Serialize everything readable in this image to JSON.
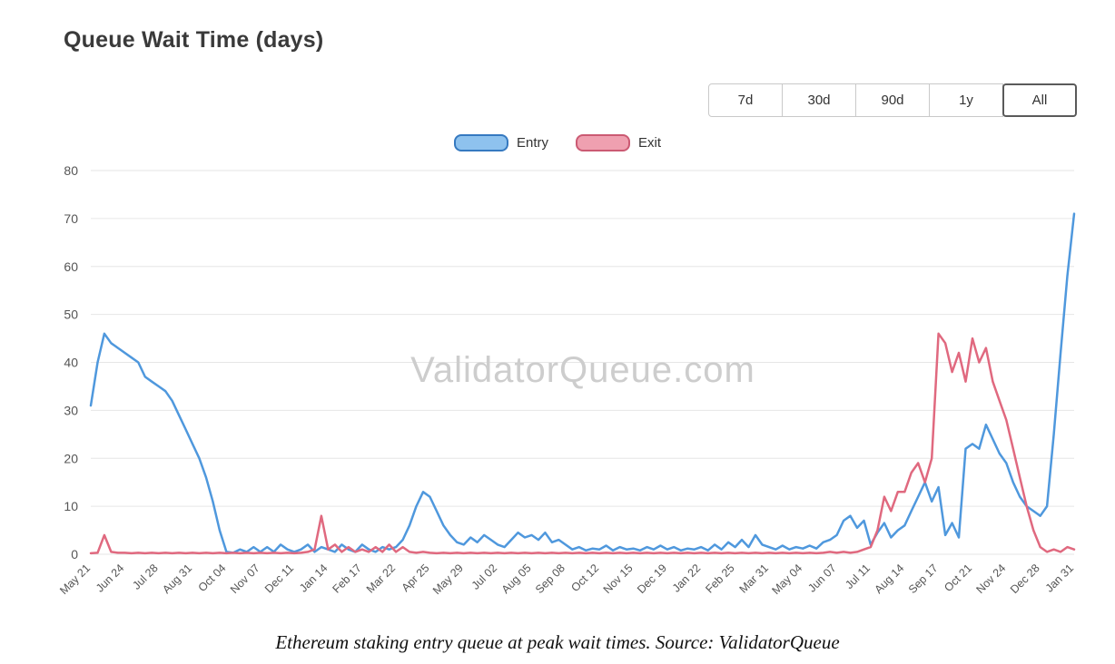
{
  "header": {
    "title": "Queue Wait Time (days)"
  },
  "range_selector": {
    "options": [
      "7d",
      "30d",
      "90d",
      "1y",
      "All"
    ],
    "selected": "All"
  },
  "legend": {
    "items": [
      {
        "label": "Entry",
        "fill": "#8ec2ee",
        "border": "#3579c0"
      },
      {
        "label": "Exit",
        "fill": "#efa0b0",
        "border": "#cb5a73"
      }
    ]
  },
  "watermark": "ValidatorQueue.com",
  "caption": "Ethereum staking entry queue at peak wait times. Source: ValidatorQueue",
  "chart_data": {
    "type": "line",
    "title": "Queue Wait Time (days)",
    "ylabel": "",
    "xlabel": "",
    "ylim": [
      0,
      80
    ],
    "y_ticks": [
      0,
      10,
      20,
      30,
      40,
      50,
      60,
      70,
      80
    ],
    "grid": "horizontal",
    "legend_position": "top-center",
    "points_per_tick_interval": 5,
    "x_tick_labels": [
      "May 21",
      "Jun 24",
      "Jul 28",
      "Aug 31",
      "Oct 04",
      "Nov 07",
      "Dec 11",
      "Jan 14",
      "Feb 17",
      "Mar 22",
      "Apr 25",
      "May 29",
      "Jul 02",
      "Aug 05",
      "Sep 08",
      "Oct 12",
      "Nov 15",
      "Dec 19",
      "Jan 22",
      "Feb 25",
      "Mar 31",
      "May 04",
      "Jun 07",
      "Jul 11",
      "Aug 14",
      "Sep 17",
      "Oct 21",
      "Nov 24",
      "Dec 28",
      "Jan 31"
    ],
    "series": [
      {
        "name": "Entry",
        "color": "#4f98dd",
        "values": [
          31,
          40,
          46,
          44,
          43,
          42,
          41,
          40,
          37,
          36,
          35,
          34,
          32,
          29,
          26,
          23,
          20,
          16,
          11,
          5,
          0.5,
          0.3,
          1,
          0.5,
          1.5,
          0.5,
          1.5,
          0.5,
          2,
          1,
          0.5,
          1,
          2,
          0.5,
          1.5,
          1,
          0.5,
          2,
          1,
          0.5,
          2,
          1,
          0.5,
          1.5,
          1,
          1.5,
          3,
          6,
          10,
          13,
          12,
          9,
          6,
          4,
          2.5,
          2,
          3.5,
          2.5,
          4,
          3,
          2,
          1.5,
          3,
          4.5,
          3.5,
          4,
          3,
          4.5,
          2.5,
          3,
          2,
          1,
          1.5,
          0.8,
          1.2,
          1,
          1.8,
          0.8,
          1.5,
          1,
          1.2,
          0.8,
          1.5,
          1,
          1.8,
          1,
          1.5,
          0.8,
          1.2,
          1,
          1.5,
          0.8,
          2,
          1,
          2.5,
          1.5,
          3,
          1.5,
          4,
          2,
          1.5,
          1,
          1.8,
          1,
          1.5,
          1.2,
          1.8,
          1.2,
          2.5,
          3,
          4,
          7,
          8,
          5.5,
          7,
          2,
          4.5,
          6.5,
          3.5,
          5,
          6,
          9,
          12,
          15,
          11,
          14,
          4,
          6.5,
          3.5,
          22,
          23,
          22,
          27,
          24,
          21,
          19,
          15,
          12,
          10,
          9,
          8,
          10,
          25,
          42,
          58,
          71
        ]
      },
      {
        "name": "Exit",
        "color": "#e0697f",
        "values": [
          0.2,
          0.3,
          4,
          0.5,
          0.3,
          0.3,
          0.2,
          0.3,
          0.2,
          0.3,
          0.2,
          0.3,
          0.2,
          0.3,
          0.2,
          0.3,
          0.2,
          0.3,
          0.2,
          0.3,
          0.2,
          0.3,
          0.2,
          0.3,
          0.2,
          0.3,
          0.2,
          0.3,
          0.2,
          0.3,
          0.2,
          0.3,
          0.5,
          1,
          8,
          1,
          2,
          0.5,
          1.5,
          0.5,
          1,
          0.5,
          1.5,
          0.5,
          2,
          0.5,
          1.5,
          0.5,
          0.3,
          0.5,
          0.3,
          0.2,
          0.3,
          0.2,
          0.3,
          0.2,
          0.3,
          0.2,
          0.3,
          0.2,
          0.3,
          0.2,
          0.3,
          0.2,
          0.3,
          0.2,
          0.3,
          0.2,
          0.3,
          0.2,
          0.3,
          0.2,
          0.3,
          0.2,
          0.3,
          0.2,
          0.3,
          0.2,
          0.3,
          0.2,
          0.3,
          0.2,
          0.3,
          0.2,
          0.3,
          0.2,
          0.3,
          0.2,
          0.3,
          0.2,
          0.3,
          0.2,
          0.3,
          0.2,
          0.3,
          0.2,
          0.3,
          0.2,
          0.3,
          0.2,
          0.3,
          0.2,
          0.3,
          0.2,
          0.3,
          0.2,
          0.3,
          0.2,
          0.3,
          0.5,
          0.3,
          0.5,
          0.3,
          0.5,
          1,
          1.5,
          5,
          12,
          9,
          13,
          13,
          17,
          19,
          15,
          20,
          46,
          44,
          38,
          42,
          36,
          45,
          40,
          43,
          36,
          32,
          28,
          22,
          16,
          10,
          5,
          1.5,
          0.5,
          1,
          0.5,
          1.5,
          1
        ]
      }
    ]
  }
}
